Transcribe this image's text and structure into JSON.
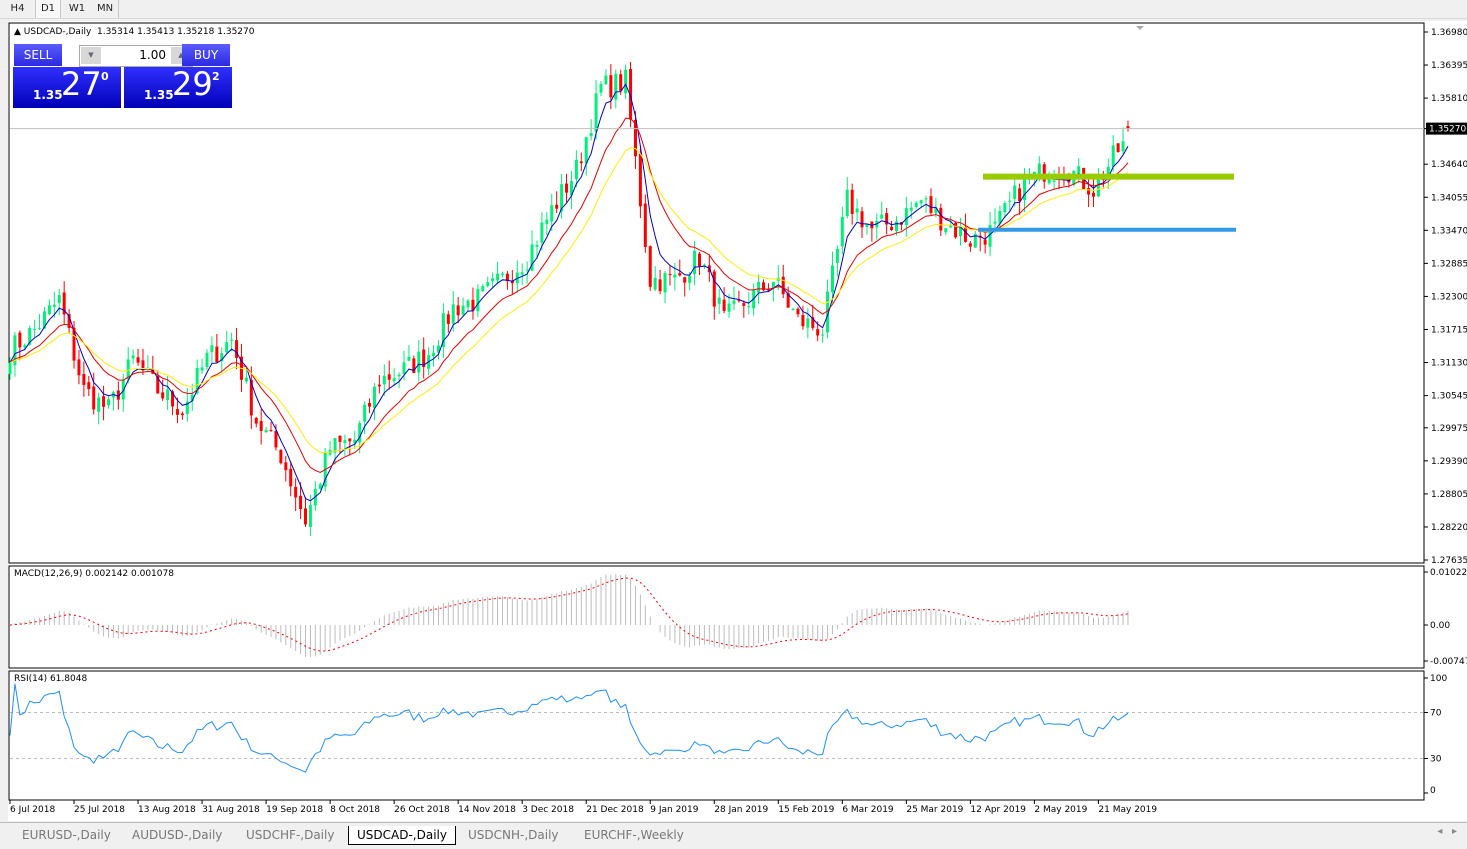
{
  "timeframes": [
    "H4",
    "D1",
    "W1",
    "MN"
  ],
  "chart": {
    "header_symbol": "USDCAD-,Daily",
    "header_ohlc": "1.35314 1.35413 1.35218 1.35270",
    "current_price": "1.35270",
    "colors": {
      "bull": "#00f07a",
      "bear": "#ff0000",
      "ma_fast": "#0000cc",
      "ma_mid": "#ee0000",
      "ma_slow": "#ffee00",
      "level_green": "#99cc00",
      "level_blue": "#3399e6",
      "macd_hist": "#bdbdbd",
      "macd_signal": "#ff0000",
      "rsi": "#1e90ff"
    }
  },
  "trade_panel": {
    "sell_label": "SELL",
    "buy_label": "BUY",
    "lot": "1.00",
    "sell_small": "1.35",
    "sell_big": "27",
    "sell_sup": "0",
    "buy_small": "1.35",
    "buy_big": "29",
    "buy_sup": "2"
  },
  "macd": {
    "label": "MACD(12,26,9) 0.002142 0.001078",
    "ticks": [
      "0.010229",
      "0.00",
      "-0.007472"
    ]
  },
  "rsi": {
    "label": "RSI(14) 61.8048",
    "ticks": [
      "100",
      "70",
      "30",
      "0"
    ]
  },
  "tabs": [
    "EURUSD-,Daily",
    "AUDUSD-,Daily",
    "USDCHF-,Daily",
    "USDCAD-,Daily",
    "USDCNH-,Daily",
    "EURCHF-,Weekly"
  ],
  "active_tab": "USDCAD-,Daily",
  "chart_data": {
    "type": "candlestick",
    "title": "USDCAD-,Daily",
    "price_ticks": [
      "1.36980",
      "1.36395",
      "1.35810",
      "1.35270",
      "1.34640",
      "1.34055",
      "1.33470",
      "1.32885",
      "1.32300",
      "1.31715",
      "1.31130",
      "1.30545",
      "1.29975",
      "1.29390",
      "1.28805",
      "1.28220",
      "1.27635"
    ],
    "ylim": [
      1.27635,
      1.3698
    ],
    "date_labels": [
      "6 Jul 2018",
      "25 Jul 2018",
      "13 Aug 2018",
      "31 Aug 2018",
      "19 Sep 2018",
      "8 Oct 2018",
      "26 Oct 2018",
      "14 Nov 2018",
      "3 Dec 2018",
      "21 Dec 2018",
      "9 Jan 2019",
      "28 Jan 2019",
      "15 Feb 2019",
      "6 Mar 2019",
      "25 Mar 2019",
      "12 Apr 2019",
      "2 May 2019",
      "21 May 2019"
    ],
    "weekly_close": [
      1.3135,
      1.3171,
      1.3224,
      1.3064,
      1.3029,
      1.3117,
      1.3064,
      1.3029,
      1.312,
      1.3153,
      1.3011,
      1.295,
      1.2834,
      1.296,
      1.2976,
      1.3082,
      1.31,
      1.313,
      1.321,
      1.3224,
      1.3259,
      1.33,
      1.3383,
      1.3454,
      1.36,
      1.361,
      1.326,
      1.3259,
      1.33,
      1.3188,
      1.3224,
      1.326,
      1.3188,
      1.3171,
      1.34,
      1.3348,
      1.3365,
      1.34,
      1.336,
      1.333,
      1.3348,
      1.342,
      1.3454,
      1.3454,
      1.342,
      1.3489,
      1.3527
    ],
    "last_bar": {
      "open": 1.35314,
      "high": 1.35413,
      "low": 1.35218,
      "close": 1.3527
    },
    "horizontal_levels": [
      {
        "price": 1.3442,
        "color": "green"
      },
      {
        "price": 1.3348,
        "color": "blue"
      }
    ],
    "moving_averages": [
      "fast",
      "mid",
      "slow"
    ]
  }
}
